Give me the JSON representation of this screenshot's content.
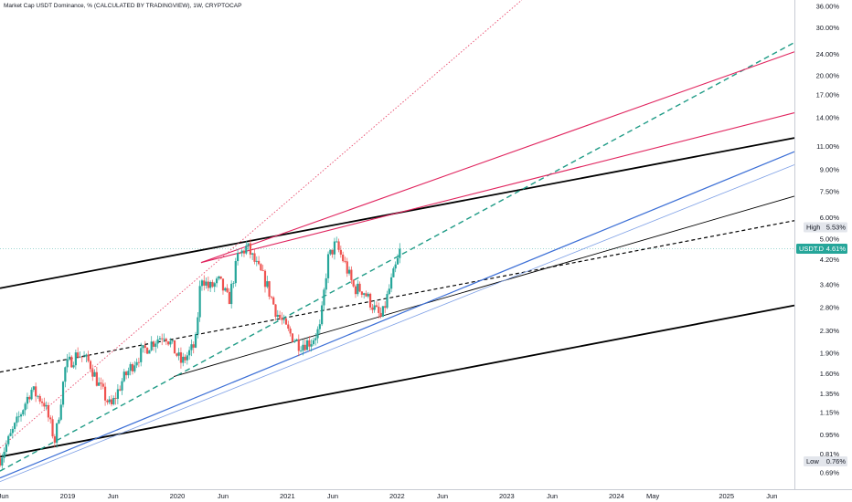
{
  "chart_data": {
    "type": "candlestick",
    "title": "Market Cap USDT Dominance, % (CALCULATED BY TRADINGVIEW), 1W, CRYPTOCAP",
    "y_scale": "log",
    "ylim": [
      0.6,
      38
    ],
    "xlim": [
      "2018-05-21",
      "2025-08-15"
    ],
    "y_ticks": [
      "36.00%",
      "30.00%",
      "24.00%",
      "20.00%",
      "17.00%",
      "14.00%",
      "11.00%",
      "9.00%",
      "7.50%",
      "6.00%",
      "5.00%",
      "4.20%",
      "3.40%",
      "2.80%",
      "2.30%",
      "1.90%",
      "1.60%",
      "1.35%",
      "1.15%",
      "0.95%",
      "0.81%",
      "0.69%"
    ],
    "x_ticks": [
      {
        "label": "Jun",
        "date": "2018-06-01"
      },
      {
        "label": "2019",
        "date": "2019-01-01"
      },
      {
        "label": "Jun",
        "date": "2019-06-01"
      },
      {
        "label": "2020",
        "date": "2020-01-01"
      },
      {
        "label": "Jun",
        "date": "2020-06-01"
      },
      {
        "label": "2021",
        "date": "2021-01-01"
      },
      {
        "label": "Jun",
        "date": "2021-06-01"
      },
      {
        "label": "2022",
        "date": "2022-01-01"
      },
      {
        "label": "Jun",
        "date": "2022-06-01"
      },
      {
        "label": "2023",
        "date": "2023-01-01"
      },
      {
        "label": "Jun",
        "date": "2023-06-01"
      },
      {
        "label": "2024",
        "date": "2024-01-01"
      },
      {
        "label": "May",
        "date": "2024-05-01"
      },
      {
        "label": "2025",
        "date": "2025-01-01"
      },
      {
        "label": "Jun",
        "date": "2025-06-01"
      }
    ],
    "anchors": [
      {
        "date": "2018-05-21",
        "value": 0.78
      },
      {
        "date": "2018-07-15",
        "value": 1.05
      },
      {
        "date": "2018-09-01",
        "value": 1.4
      },
      {
        "date": "2018-10-15",
        "value": 1.25
      },
      {
        "date": "2018-11-20",
        "value": 0.9
      },
      {
        "date": "2018-12-25",
        "value": 1.7
      },
      {
        "date": "2019-02-05",
        "value": 1.9
      },
      {
        "date": "2019-03-15",
        "value": 1.75
      },
      {
        "date": "2019-04-15",
        "value": 1.45
      },
      {
        "date": "2019-05-25",
        "value": 1.2
      },
      {
        "date": "2019-07-01",
        "value": 1.5
      },
      {
        "date": "2019-08-15",
        "value": 1.8
      },
      {
        "date": "2019-10-01",
        "value": 2.05
      },
      {
        "date": "2019-11-20",
        "value": 2.25
      },
      {
        "date": "2020-01-15",
        "value": 1.75
      },
      {
        "date": "2020-03-01",
        "value": 2.05
      },
      {
        "date": "2020-03-20",
        "value": 3.7
      },
      {
        "date": "2020-04-15",
        "value": 3.3
      },
      {
        "date": "2020-05-20",
        "value": 3.5
      },
      {
        "date": "2020-06-20",
        "value": 2.95
      },
      {
        "date": "2020-07-20",
        "value": 4.3
      },
      {
        "date": "2020-08-20",
        "value": 4.7
      },
      {
        "date": "2020-09-20",
        "value": 4.0
      },
      {
        "date": "2020-10-20",
        "value": 3.5
      },
      {
        "date": "2020-11-25",
        "value": 2.7
      },
      {
        "date": "2021-01-01",
        "value": 2.3
      },
      {
        "date": "2021-02-10",
        "value": 2.05
      },
      {
        "date": "2021-03-20",
        "value": 2.1
      },
      {
        "date": "2021-04-20",
        "value": 2.35
      },
      {
        "date": "2021-05-15",
        "value": 4.2
      },
      {
        "date": "2021-06-10",
        "value": 4.8
      },
      {
        "date": "2021-07-10",
        "value": 4.1
      },
      {
        "date": "2021-08-10",
        "value": 3.3
      },
      {
        "date": "2021-09-10",
        "value": 3.25
      },
      {
        "date": "2021-10-15",
        "value": 2.8
      },
      {
        "date": "2021-11-10",
        "value": 2.55
      },
      {
        "date": "2021-12-10",
        "value": 3.4
      },
      {
        "date": "2022-01-15",
        "value": 4.61
      }
    ],
    "series": [],
    "markers": [
      {
        "label": "High",
        "value_label": "5.53%",
        "value": 5.53,
        "color": "#131722",
        "bg": "#e3e6ec"
      },
      {
        "label": "USDT.D",
        "value_label": "4.61%",
        "value": 4.61,
        "color": "#ffffff",
        "bg": "#26a69a"
      },
      {
        "label": "Low",
        "value_label": "0.76%",
        "value": 0.76,
        "color": "#131722",
        "bg": "#e3e6ec"
      }
    ],
    "trendlines": [
      {
        "d1": "2018-05-21",
        "v1": 3.3,
        "d2": "2025-08-15",
        "v2": 11.8,
        "color": "#000000",
        "width": 1.8,
        "dash": ""
      },
      {
        "d1": "2018-05-21",
        "v1": 0.79,
        "d2": "2025-08-15",
        "v2": 2.85,
        "color": "#000000",
        "width": 1.8,
        "dash": ""
      },
      {
        "d1": "2018-05-21",
        "v1": 1.62,
        "d2": "2025-08-15",
        "v2": 5.85,
        "color": "#000000",
        "width": 1.2,
        "dash": "4,3"
      },
      {
        "d1": "2019-12-20",
        "v1": 1.56,
        "d2": "2025-08-15",
        "v2": 7.2,
        "color": "#000000",
        "width": 0.9,
        "dash": ""
      },
      {
        "d1": "2018-05-21",
        "v1": 0.66,
        "d2": "2025-08-15",
        "v2": 10.5,
        "color": "#3c6fd6",
        "width": 1.2,
        "dash": ""
      },
      {
        "d1": "2018-05-21",
        "v1": 0.64,
        "d2": "2025-08-15",
        "v2": 9.4,
        "color": "#7ea0e6",
        "width": 0.8,
        "dash": ""
      },
      {
        "d1": "2018-05-21",
        "v1": 0.7,
        "d2": "2025-08-15",
        "v2": 26.5,
        "color": "#1f9b86",
        "width": 1.4,
        "dash": "6,4"
      },
      {
        "d1": "2020-03-20",
        "v1": 4.1,
        "d2": "2025-08-15",
        "v2": 24.5,
        "color": "#e0245e",
        "width": 1.1,
        "dash": ""
      },
      {
        "d1": "2020-03-20",
        "v1": 4.1,
        "d2": "2025-08-15",
        "v2": 14.6,
        "color": "#e0245e",
        "width": 1.1,
        "dash": ""
      },
      {
        "d1": "2018-05-21",
        "v1": 0.85,
        "d2": "2023-02-20",
        "v2": 38,
        "color": "#e84a6c",
        "width": 0.9,
        "dash": "1.5,2"
      }
    ]
  }
}
